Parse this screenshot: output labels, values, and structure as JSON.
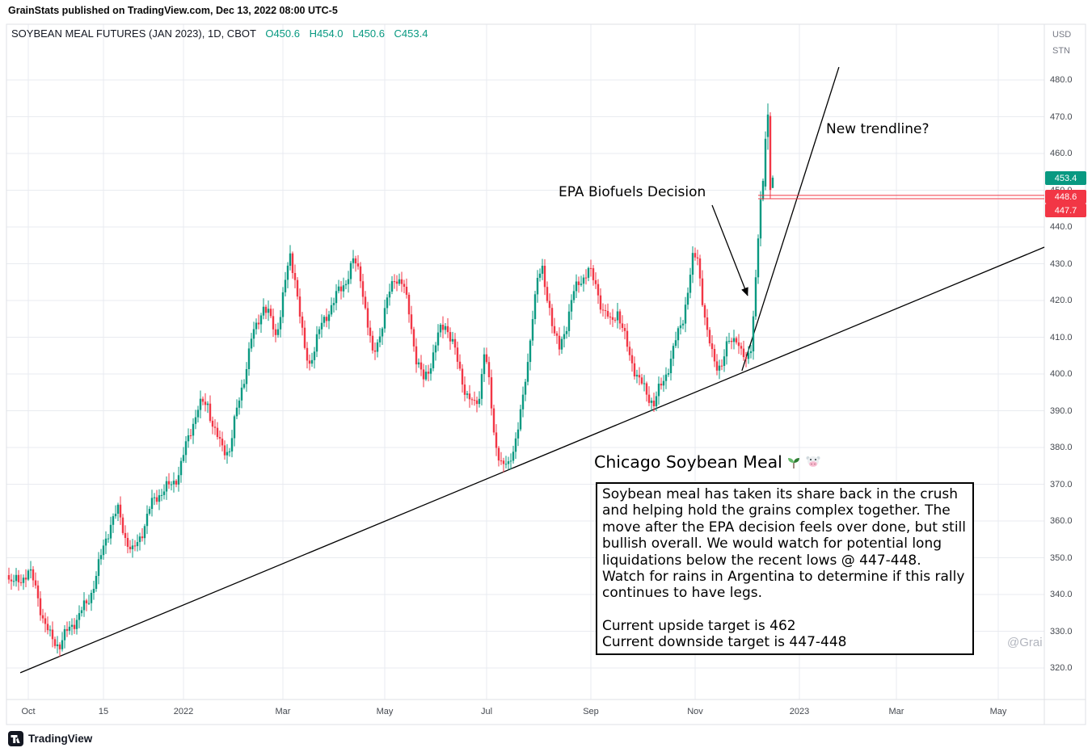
{
  "page": {
    "publish_line": "GrainStats published on TradingView.com, Dec 13, 2022 08:00 UTC-5",
    "watermark": "@Grai",
    "footer_brand": "TradingView"
  },
  "chart_header": {
    "symbol": "SOYBEAN MEAL FUTURES (JAN 2023), 1D, CBOT",
    "open": "O450.6",
    "high": "H454.0",
    "low": "L450.6",
    "close": "C453.4"
  },
  "price_axis": {
    "currency": "USD",
    "unit": "STN",
    "badges": {
      "last": "453.4",
      "level1": "448.6",
      "level2": "447.7"
    }
  },
  "annotations": {
    "epa_label": "EPA Biofuels Decision",
    "new_trendline_label": "New trendline?",
    "note_title": "Chicago Soybean Meal",
    "note_icons": [
      "seedling-icon",
      "cow-icon"
    ],
    "note_body": "Soybean meal has taken its share back in the crush and helping hold the grains complex together.  The move after the EPA decision feels over done, but still bullish overall.  We would watch for potential long liquidations below the recent lows @ 447-448. Watch for rains in Argentina to determine if this rally continues to have legs.",
    "note_target_up": "Current upside target is 462",
    "note_target_down": "Current downside target is 447-448"
  },
  "chart_data": {
    "type": "candlestick",
    "title": "Soybean Meal Futures (Jan 2023), 1D, CBOT",
    "timeframe": "1D",
    "ohlc_last": {
      "open": 450.6,
      "high": 454.0,
      "low": 450.6,
      "close": 453.4
    },
    "ylim": [
      315,
      486
    ],
    "grid": true,
    "price_ticks": [
      480,
      470,
      460,
      450,
      440,
      430,
      420,
      410,
      400,
      390,
      380,
      370,
      360,
      350,
      340,
      330,
      320
    ],
    "time_ticks": [
      {
        "label": "Oct",
        "day": 0
      },
      {
        "label": "15",
        "day": 31
      },
      {
        "label": "2022",
        "day": 64
      },
      {
        "label": "Mar",
        "day": 105
      },
      {
        "label": "May",
        "day": 147
      },
      {
        "label": "Jul",
        "day": 189
      },
      {
        "label": "Sep",
        "day": 232
      },
      {
        "label": "Nov",
        "day": 275
      },
      {
        "label": "2023",
        "day": 318
      },
      {
        "label": "Mar",
        "day": 358
      },
      {
        "label": "May",
        "day": 400
      }
    ],
    "last_price": {
      "value": 453.4,
      "color": "#089981"
    },
    "levels": [
      {
        "price": 448.6,
        "label": "448.6",
        "color": "#f23645"
      },
      {
        "price": 447.7,
        "label": "447.7",
        "color": "#f23645"
      }
    ],
    "up_color": "#089981",
    "down_color": "#f23645",
    "annotation_texts": [
      "EPA Biofuels Decision",
      "New trendline?"
    ],
    "close_anchors": [
      [
        -8,
        346
      ],
      [
        -4,
        344
      ],
      [
        0,
        345
      ],
      [
        3,
        340
      ],
      [
        6,
        334
      ],
      [
        9,
        330
      ],
      [
        13,
        327.5
      ],
      [
        17,
        329
      ],
      [
        20,
        332
      ],
      [
        24,
        338
      ],
      [
        28,
        347
      ],
      [
        31,
        353
      ],
      [
        34,
        358
      ],
      [
        37,
        361
      ],
      [
        40,
        356
      ],
      [
        43,
        353
      ],
      [
        46,
        357
      ],
      [
        50,
        362
      ],
      [
        54,
        366
      ],
      [
        58,
        370
      ],
      [
        62,
        375
      ],
      [
        66,
        382
      ],
      [
        70,
        389
      ],
      [
        74,
        392
      ],
      [
        77,
        386
      ],
      [
        80,
        381
      ],
      [
        83,
        379
      ],
      [
        86,
        388
      ],
      [
        89,
        398
      ],
      [
        92,
        410
      ],
      [
        95,
        417
      ],
      [
        97,
        420
      ],
      [
        100,
        414
      ],
      [
        102,
        409
      ],
      [
        104,
        415
      ],
      [
        106,
        424
      ],
      [
        108,
        432
      ],
      [
        110,
        428
      ],
      [
        112,
        418
      ],
      [
        114,
        407
      ],
      [
        116,
        403
      ],
      [
        119,
        408
      ],
      [
        122,
        413
      ],
      [
        125,
        419
      ],
      [
        128,
        424
      ],
      [
        131,
        427
      ],
      [
        134,
        430
      ],
      [
        137,
        425
      ],
      [
        140,
        412
      ],
      [
        142,
        405
      ],
      [
        145,
        413
      ],
      [
        148,
        421
      ],
      [
        151,
        426
      ],
      [
        154,
        423
      ],
      [
        157,
        416
      ],
      [
        160,
        405
      ],
      [
        163,
        400
      ],
      [
        166,
        404
      ],
      [
        169,
        409
      ],
      [
        172,
        412
      ],
      [
        175,
        408
      ],
      [
        178,
        402
      ],
      [
        181,
        396
      ],
      [
        184,
        391
      ],
      [
        186,
        393
      ],
      [
        188,
        405
      ],
      [
        190,
        396
      ],
      [
        192,
        383
      ],
      [
        195,
        377.5
      ],
      [
        198,
        376
      ],
      [
        201,
        383
      ],
      [
        204,
        391
      ],
      [
        206,
        401
      ],
      [
        208,
        416
      ],
      [
        210,
        426
      ],
      [
        212,
        429
      ],
      [
        215,
        420
      ],
      [
        217,
        411
      ],
      [
        219,
        406
      ],
      [
        222,
        412
      ],
      [
        225,
        421
      ],
      [
        228,
        427
      ],
      [
        231,
        430
      ],
      [
        234,
        425
      ],
      [
        237,
        416
      ],
      [
        240,
        412
      ],
      [
        243,
        417
      ],
      [
        246,
        411
      ],
      [
        249,
        405
      ],
      [
        252,
        398
      ],
      [
        255,
        393
      ],
      [
        258,
        390.5
      ],
      [
        261,
        397
      ],
      [
        264,
        404
      ],
      [
        267,
        410
      ],
      [
        270,
        415
      ],
      [
        272,
        421
      ],
      [
        274,
        429
      ],
      [
        276,
        431
      ],
      [
        278,
        421
      ],
      [
        280,
        412
      ],
      [
        283,
        405
      ],
      [
        286,
        402.5
      ],
      [
        289,
        407
      ],
      [
        292,
        409
      ],
      [
        294,
        405
      ],
      [
        296,
        404
      ],
      [
        298,
        410
      ],
      [
        299,
        418
      ],
      [
        300,
        428
      ],
      [
        301,
        438
      ],
      [
        302,
        446
      ],
      [
        303,
        452
      ]
    ],
    "final_candles": [
      {
        "day": 304,
        "o": 451.0,
        "h": 466.0,
        "l": 450.0,
        "c": 464.0
      },
      {
        "day": 305,
        "o": 464.5,
        "h": 473.6,
        "l": 461.0,
        "c": 470.6
      },
      {
        "day": 306,
        "o": 470.2,
        "h": 471.2,
        "l": 447.7,
        "c": 450.1
      },
      {
        "day": 307,
        "o": 450.6,
        "h": 454.0,
        "l": 450.6,
        "c": 453.4
      }
    ],
    "trendlines": [
      {
        "name": "primary-uptrend",
        "x1_day": -3.3,
        "y1_price": 318.7,
        "x2_day": 419,
        "y2_price": 434.5
      },
      {
        "name": "new-trendline",
        "x1_day": 294.3,
        "y1_price": 400.9,
        "x2_day": 334.3,
        "y2_price": 483.5
      }
    ]
  },
  "colors": {
    "up": "#089981",
    "down": "#f23645",
    "grid": "#e9ebf0",
    "frame": "#dfe1e6",
    "trendline": "#000000",
    "axis_text": "#44484f"
  }
}
